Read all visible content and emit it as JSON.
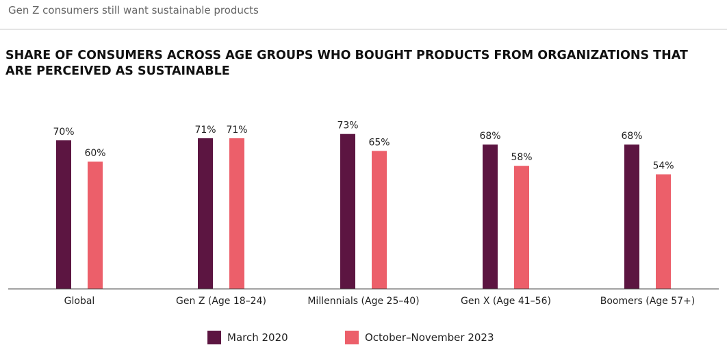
{
  "header": {
    "text": "Gen Z consumers still want sustainable products"
  },
  "chart_data": {
    "type": "bar",
    "title": "SHARE OF CONSUMERS ACROSS AGE GROUPS WHO BOUGHT PRODUCTS FROM ORGANIZATIONS THAT ARE PERCEIVED AS SUSTAINABLE",
    "categories": [
      "Global",
      "Gen Z (Age 18–24)",
      "Millennials (Age 25–40)",
      "Gen X (Age 41–56)",
      "Boomers (Age 57+)"
    ],
    "series": [
      {
        "name": "March 2020",
        "color": "#5c1541",
        "values": [
          70,
          71,
          73,
          68,
          68
        ]
      },
      {
        "name": "October–November 2023",
        "color": "#ec5f6a",
        "values": [
          60,
          71,
          65,
          58,
          54
        ]
      }
    ],
    "value_suffix": "%",
    "ylim": [
      0,
      80
    ],
    "grid": false,
    "legend_position": "bottom-center"
  }
}
